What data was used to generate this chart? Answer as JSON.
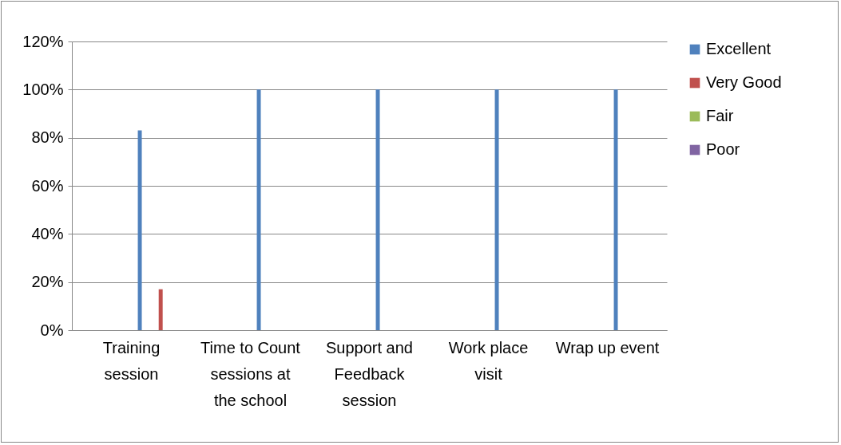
{
  "chart_data": {
    "type": "bar",
    "categories": [
      "Training session",
      "Time to Count sessions at the school",
      "Support and Feedback session",
      "Work place visit",
      "Wrap up event"
    ],
    "series": [
      {
        "name": "Excellent",
        "color": "#4f81bd",
        "values": [
          83,
          100,
          100,
          100,
          100
        ]
      },
      {
        "name": "Very Good",
        "color": "#c0504d",
        "values": [
          17,
          0,
          0,
          0,
          0
        ]
      },
      {
        "name": "Fair",
        "color": "#9bbb59",
        "values": [
          0,
          0,
          0,
          0,
          0
        ]
      },
      {
        "name": "Poor",
        "color": "#8064a2",
        "values": [
          0,
          0,
          0,
          0,
          0
        ]
      }
    ],
    "ylim": [
      0,
      120
    ],
    "yticks": [
      {
        "value": 0,
        "label": "0%"
      },
      {
        "value": 20,
        "label": "20%"
      },
      {
        "value": 40,
        "label": "40%"
      },
      {
        "value": 60,
        "label": "60%"
      },
      {
        "value": 80,
        "label": "80%"
      },
      {
        "value": 100,
        "label": "100%"
      },
      {
        "value": 120,
        "label": "120%"
      }
    ],
    "grid": "y",
    "legend": "right"
  }
}
